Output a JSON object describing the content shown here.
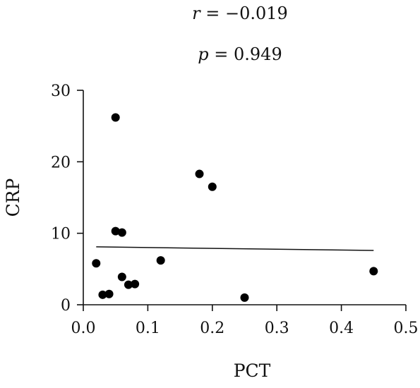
{
  "stats": {
    "r_symbol": "r",
    "r_value": " = −0.019",
    "p_symbol": "p",
    "p_value": " = 0.949"
  },
  "chart_data": {
    "type": "scatter",
    "xlabel": "PCT",
    "ylabel": "CRP",
    "xlim": [
      0,
      0.5
    ],
    "ylim": [
      0,
      30
    ],
    "x_ticks": [
      0.0,
      0.1,
      0.2,
      0.3,
      0.4,
      0.5
    ],
    "x_tick_labels": [
      "0.0",
      "0.1",
      "0.2",
      "0.3",
      "0.4",
      "0.5"
    ],
    "y_ticks": [
      0,
      10,
      20,
      30
    ],
    "y_tick_labels": [
      "0",
      "10",
      "20",
      "30"
    ],
    "grid": false,
    "points": [
      {
        "x": 0.05,
        "y": 26.2
      },
      {
        "x": 0.18,
        "y": 18.3
      },
      {
        "x": 0.2,
        "y": 16.5
      },
      {
        "x": 0.05,
        "y": 10.3
      },
      {
        "x": 0.06,
        "y": 10.1
      },
      {
        "x": 0.02,
        "y": 5.8
      },
      {
        "x": 0.12,
        "y": 6.2
      },
      {
        "x": 0.45,
        "y": 4.7
      },
      {
        "x": 0.06,
        "y": 3.9
      },
      {
        "x": 0.07,
        "y": 2.8
      },
      {
        "x": 0.08,
        "y": 2.9
      },
      {
        "x": 0.03,
        "y": 1.4
      },
      {
        "x": 0.04,
        "y": 1.5
      },
      {
        "x": 0.25,
        "y": 1.0
      }
    ],
    "fit_line": {
      "x": [
        0.02,
        0.45
      ],
      "y": [
        8.1,
        7.6
      ]
    }
  }
}
